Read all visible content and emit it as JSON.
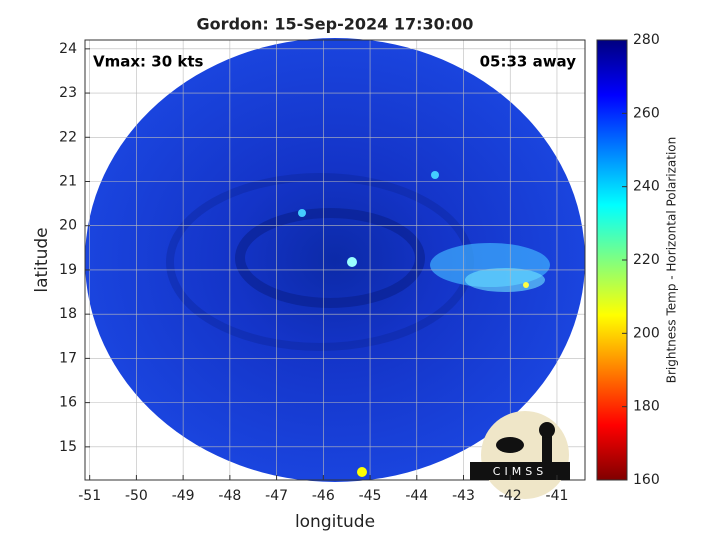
{
  "chart_data": {
    "type": "map",
    "title": "Gordon: 15-Sep-2024 17:30:00",
    "xlabel": "longitude",
    "ylabel": "latitude",
    "annotations": [
      "Vmax: 30 kts",
      "05:33 away"
    ],
    "logo": "CIMSS",
    "xlim": [
      -51.1,
      -40.4
    ],
    "xticks": [
      -51,
      -50,
      -49,
      -48,
      -47,
      -46,
      -45,
      -44,
      -43,
      -42,
      -41
    ],
    "ylim": [
      14.25,
      24.2
    ],
    "yticks": [
      15,
      16,
      17,
      18,
      19,
      20,
      21,
      22,
      23,
      24
    ],
    "grid": true,
    "colorbar": {
      "label": "Brightness Temp - Horizontal Polarization",
      "lim": [
        160,
        280
      ],
      "ticks": [
        160,
        180,
        200,
        220,
        240,
        260,
        280
      ],
      "colors": [
        "#800000",
        "#ff0000",
        "#ff8000",
        "#ffff00",
        "#80ff80",
        "#00ffff",
        "#0080ff",
        "#0000ff",
        "#000080"
      ]
    }
  }
}
